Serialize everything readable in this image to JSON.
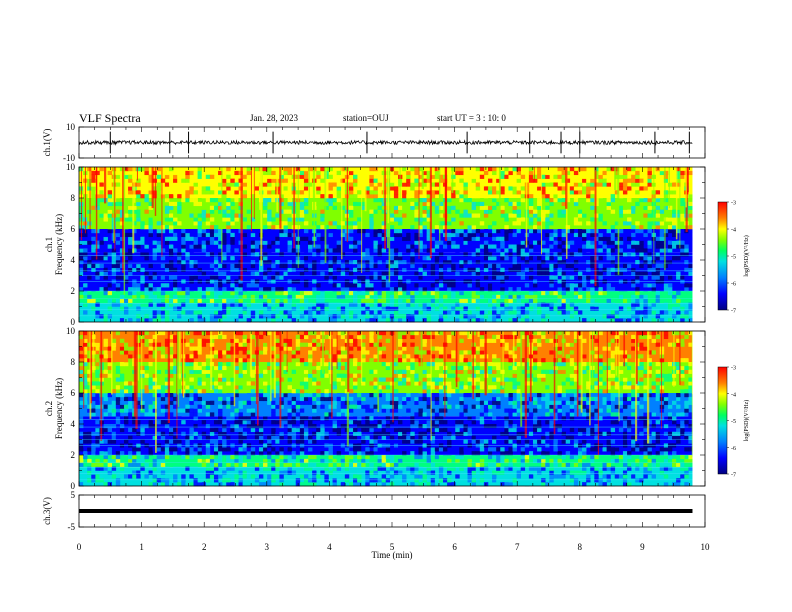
{
  "header": {
    "title": "VLF Spectra",
    "date": "Jan. 28, 2023",
    "station": "station=OUJ",
    "start_time": "start UT =  3 : 10: 0"
  },
  "chart_data": [
    {
      "type": "line",
      "panel": "ch1-waveform",
      "ylabel": "ch.1(V)",
      "ylim": [
        -10,
        10
      ],
      "yticks": [
        "10",
        "-10"
      ],
      "xlim": [
        0,
        10
      ],
      "baseline_value": 0,
      "end_time_min": 9.8,
      "spikes_min": [
        0.5,
        1.45,
        1.75,
        3.1,
        4.6,
        6.2,
        7.2,
        7.7,
        8.0,
        9.2,
        9.75
      ]
    },
    {
      "type": "heatmap",
      "panel": "ch1-spectrogram",
      "ylabel_line1": "ch.1",
      "ylabel_line2": "Frequency (kHz)",
      "ylim": [
        0,
        10
      ],
      "yticks": [
        "0",
        "2",
        "4",
        "6",
        "8",
        "10"
      ],
      "xlim": [
        0,
        10
      ],
      "end_time_min": 9.8,
      "colorbar": {
        "label": "log(PSD)(V²/Hz)",
        "range": [
          -7,
          -3
        ],
        "ticks": [
          "-3",
          "-4",
          "-5",
          "-6",
          "-7"
        ]
      },
      "colorscale": [
        "#00007a",
        "#0000ff",
        "#0080ff",
        "#00e0e0",
        "#00ff80",
        "#80ff00",
        "#ffff00",
        "#ff8000",
        "#ff0000",
        "#c00000"
      ],
      "description_bands": [
        {
          "fmin": 0,
          "fmax": 1.2,
          "level": -5.8
        },
        {
          "fmin": 1.2,
          "fmax": 2.0,
          "level": -5.2
        },
        {
          "fmin": 2.0,
          "fmax": 4.5,
          "level": -6.4
        },
        {
          "fmin": 4.5,
          "fmax": 6.0,
          "level": -6.2
        },
        {
          "fmin": 6.0,
          "fmax": 8.0,
          "level": -4.9
        },
        {
          "fmin": 8.0,
          "fmax": 10.0,
          "level": -4.3
        }
      ]
    },
    {
      "type": "heatmap",
      "panel": "ch2-spectrogram",
      "ylabel_line1": "ch.2",
      "ylabel_line2": "Frequency (kHz)",
      "ylim": [
        0,
        10
      ],
      "yticks": [
        "0",
        "2",
        "4",
        "6",
        "8",
        "10"
      ],
      "xlim": [
        0,
        10
      ],
      "end_time_min": 9.8,
      "colorbar": {
        "label": "log(PSD)(V²/Hz)",
        "range": [
          -7,
          -3
        ],
        "ticks": [
          "-3",
          "-4",
          "-5",
          "-6",
          "-7"
        ]
      },
      "colorscale": [
        "#00007a",
        "#0000ff",
        "#0080ff",
        "#00e0e0",
        "#00ff80",
        "#80ff00",
        "#ffff00",
        "#ff8000",
        "#ff0000",
        "#c00000"
      ],
      "description_bands": [
        {
          "fmin": 0,
          "fmax": 1.2,
          "level": -5.8
        },
        {
          "fmin": 1.2,
          "fmax": 2.0,
          "level": -5.3
        },
        {
          "fmin": 2.0,
          "fmax": 4.5,
          "level": -6.4
        },
        {
          "fmin": 4.5,
          "fmax": 6.0,
          "level": -6.1
        },
        {
          "fmin": 6.0,
          "fmax": 8.0,
          "level": -4.8
        },
        {
          "fmin": 8.0,
          "fmax": 10.0,
          "level": -4.2
        }
      ]
    },
    {
      "type": "line",
      "panel": "ch3-waveform",
      "ylabel": "ch.3(V)",
      "ylim": [
        -5,
        5
      ],
      "yticks": [
        "5",
        "-5"
      ],
      "xlim": [
        0,
        10
      ],
      "baseline_value": 0,
      "end_time_min": 9.8
    }
  ],
  "xaxis": {
    "label": "Time (min)",
    "ticks": [
      "0",
      "1",
      "2",
      "3",
      "4",
      "5",
      "6",
      "7",
      "8",
      "9",
      "10"
    ]
  }
}
